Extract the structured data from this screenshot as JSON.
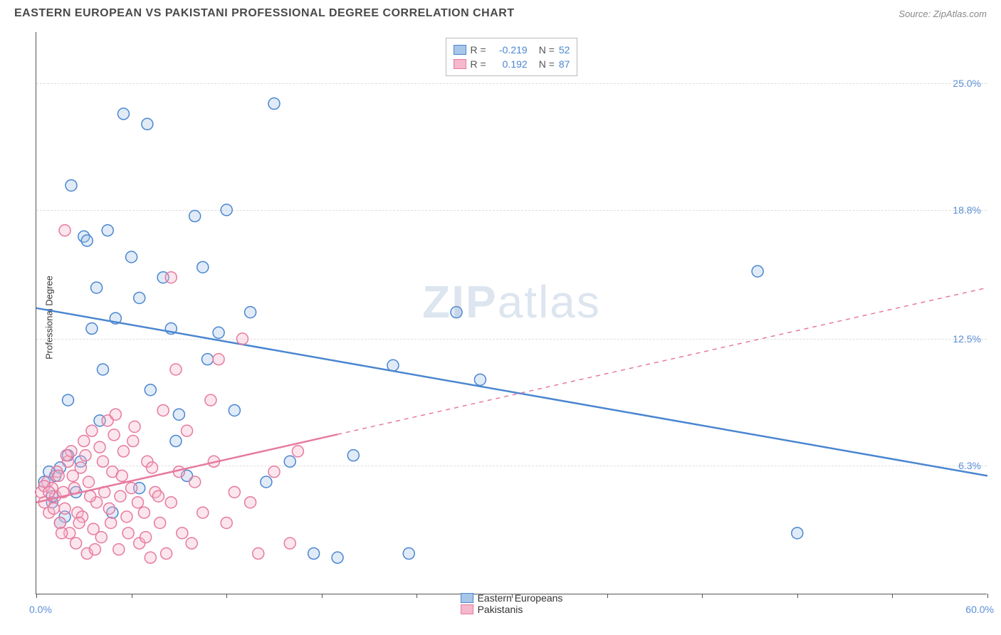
{
  "header": {
    "title": "EASTERN EUROPEAN VS PAKISTANI PROFESSIONAL DEGREE CORRELATION CHART",
    "source_label": "Source:",
    "source_name": "ZipAtlas.com"
  },
  "watermark": {
    "zip": "ZIP",
    "atlas": "atlas"
  },
  "chart": {
    "type": "scatter",
    "ylabel": "Professional Degree",
    "xlim": [
      0,
      60
    ],
    "ylim": [
      0,
      27.5
    ],
    "x_axis_min_label": "0.0%",
    "x_axis_max_label": "60.0%",
    "background_color": "#ffffff",
    "grid_color": "#dddddd",
    "axis_color": "#555555",
    "gridlines_y": [
      6.3,
      12.5,
      18.8,
      25.0
    ],
    "ytick_labels": [
      "6.3%",
      "12.5%",
      "18.8%",
      "25.0%"
    ],
    "xticks": [
      0,
      6,
      12,
      18,
      24,
      30,
      36,
      42,
      48,
      54,
      60
    ],
    "marker_radius": 8,
    "marker_stroke_width": 1.5,
    "marker_fill_opacity": 0.35,
    "line_width": 2.5,
    "series": [
      {
        "name": "Eastern Europeans",
        "color_stroke": "#4a86d0",
        "color_fill": "#a8c6e8",
        "R": "-0.219",
        "N": "52",
        "trend": {
          "x1": 0,
          "y1": 14.0,
          "x2": 60,
          "y2": 5.8,
          "solid_until_x": 60
        },
        "points": [
          [
            0.5,
            5.5
          ],
          [
            0.8,
            6.0
          ],
          [
            1.0,
            4.5
          ],
          [
            1.2,
            5.8
          ],
          [
            1.5,
            6.2
          ],
          [
            1.8,
            3.8
          ],
          [
            2.0,
            9.5
          ],
          [
            2.2,
            20.0
          ],
          [
            2.5,
            5.0
          ],
          [
            3.0,
            17.5
          ],
          [
            3.2,
            17.3
          ],
          [
            3.5,
            13.0
          ],
          [
            3.8,
            15.0
          ],
          [
            4.0,
            8.5
          ],
          [
            4.2,
            11.0
          ],
          [
            4.5,
            17.8
          ],
          [
            5.0,
            13.5
          ],
          [
            5.5,
            23.5
          ],
          [
            6.0,
            16.5
          ],
          [
            6.5,
            14.5
          ],
          [
            7.0,
            23.0
          ],
          [
            7.2,
            10.0
          ],
          [
            8.0,
            15.5
          ],
          [
            8.5,
            13.0
          ],
          [
            8.8,
            7.5
          ],
          [
            9.0,
            8.8
          ],
          [
            10.0,
            18.5
          ],
          [
            10.5,
            16.0
          ],
          [
            10.8,
            11.5
          ],
          [
            11.5,
            12.8
          ],
          [
            12.0,
            18.8
          ],
          [
            12.5,
            9.0
          ],
          [
            13.5,
            13.8
          ],
          [
            14.5,
            5.5
          ],
          [
            15.0,
            24.0
          ],
          [
            16.0,
            6.5
          ],
          [
            17.5,
            2.0
          ],
          [
            19.0,
            1.8
          ],
          [
            20.0,
            6.8
          ],
          [
            22.5,
            11.2
          ],
          [
            23.5,
            2.0
          ],
          [
            26.5,
            13.8
          ],
          [
            28.0,
            10.5
          ],
          [
            45.5,
            15.8
          ],
          [
            48.0,
            3.0
          ],
          [
            1.0,
            4.8
          ],
          [
            2.8,
            6.5
          ],
          [
            4.8,
            4.0
          ],
          [
            6.5,
            5.2
          ],
          [
            9.5,
            5.8
          ],
          [
            1.5,
            3.5
          ],
          [
            2.0,
            6.8
          ]
        ]
      },
      {
        "name": "Pakistanis",
        "color_stroke": "#e67a9e",
        "color_fill": "#f5b8cc",
        "R": "0.192",
        "N": "87",
        "trend": {
          "x1": 0,
          "y1": 4.5,
          "x2": 60,
          "y2": 15.0,
          "solid_until_x": 19
        },
        "points": [
          [
            0.3,
            5.0
          ],
          [
            0.5,
            4.5
          ],
          [
            0.7,
            5.5
          ],
          [
            0.8,
            4.0
          ],
          [
            1.0,
            5.2
          ],
          [
            1.2,
            4.8
          ],
          [
            1.3,
            6.0
          ],
          [
            1.5,
            3.5
          ],
          [
            1.7,
            5.0
          ],
          [
            1.8,
            4.2
          ],
          [
            2.0,
            6.5
          ],
          [
            2.1,
            3.0
          ],
          [
            2.2,
            7.0
          ],
          [
            2.3,
            5.8
          ],
          [
            2.5,
            2.5
          ],
          [
            2.6,
            4.0
          ],
          [
            2.8,
            6.2
          ],
          [
            2.9,
            3.8
          ],
          [
            3.0,
            7.5
          ],
          [
            3.2,
            2.0
          ],
          [
            3.3,
            5.5
          ],
          [
            3.5,
            8.0
          ],
          [
            3.6,
            3.2
          ],
          [
            3.8,
            4.5
          ],
          [
            4.0,
            7.2
          ],
          [
            4.1,
            2.8
          ],
          [
            4.3,
            5.0
          ],
          [
            4.5,
            8.5
          ],
          [
            4.7,
            3.5
          ],
          [
            4.8,
            6.0
          ],
          [
            5.0,
            8.8
          ],
          [
            5.2,
            2.2
          ],
          [
            5.3,
            4.8
          ],
          [
            5.5,
            7.0
          ],
          [
            5.8,
            3.0
          ],
          [
            6.0,
            5.2
          ],
          [
            6.2,
            8.2
          ],
          [
            6.5,
            2.5
          ],
          [
            6.8,
            4.0
          ],
          [
            7.0,
            6.5
          ],
          [
            7.2,
            1.8
          ],
          [
            7.5,
            5.0
          ],
          [
            7.8,
            3.5
          ],
          [
            8.0,
            9.0
          ],
          [
            8.2,
            2.0
          ],
          [
            8.5,
            4.5
          ],
          [
            8.8,
            11.0
          ],
          [
            9.0,
            6.0
          ],
          [
            9.2,
            3.0
          ],
          [
            9.5,
            8.0
          ],
          [
            9.8,
            2.5
          ],
          [
            10.0,
            5.5
          ],
          [
            10.5,
            4.0
          ],
          [
            11.0,
            9.5
          ],
          [
            11.2,
            6.5
          ],
          [
            11.5,
            11.5
          ],
          [
            12.0,
            3.5
          ],
          [
            12.5,
            5.0
          ],
          [
            13.0,
            12.5
          ],
          [
            13.5,
            4.5
          ],
          [
            14.0,
            2.0
          ],
          [
            15.0,
            6.0
          ],
          [
            16.0,
            2.5
          ],
          [
            16.5,
            7.0
          ],
          [
            1.8,
            17.8
          ],
          [
            8.5,
            15.5
          ],
          [
            0.5,
            5.3
          ],
          [
            0.8,
            5.0
          ],
          [
            1.1,
            4.2
          ],
          [
            1.4,
            5.8
          ],
          [
            1.6,
            3.0
          ],
          [
            1.9,
            6.8
          ],
          [
            2.4,
            5.2
          ],
          [
            2.7,
            3.5
          ],
          [
            3.1,
            6.8
          ],
          [
            3.4,
            4.8
          ],
          [
            3.7,
            2.2
          ],
          [
            4.2,
            6.5
          ],
          [
            4.6,
            4.2
          ],
          [
            4.9,
            7.8
          ],
          [
            5.4,
            5.8
          ],
          [
            5.7,
            3.8
          ],
          [
            6.1,
            7.5
          ],
          [
            6.4,
            4.5
          ],
          [
            6.9,
            2.8
          ],
          [
            7.3,
            6.2
          ],
          [
            7.7,
            4.8
          ]
        ]
      }
    ]
  },
  "legend_top": {
    "r_label": "R =",
    "n_label": "N =",
    "value_color": "#4a86d0",
    "text_color": "#555555"
  },
  "legend_bottom": {
    "text_color": "#333333"
  }
}
